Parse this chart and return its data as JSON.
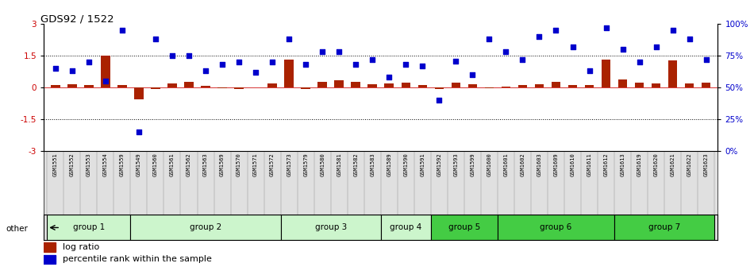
{
  "title": "GDS92 / 1522",
  "samples": [
    "GSM1551",
    "GSM1552",
    "GSM1553",
    "GSM1554",
    "GSM1559",
    "GSM1549",
    "GSM1560",
    "GSM1561",
    "GSM1562",
    "GSM1563",
    "GSM1569",
    "GSM1570",
    "GSM1571",
    "GSM1572",
    "GSM1573",
    "GSM1579",
    "GSM1580",
    "GSM1581",
    "GSM1582",
    "GSM1583",
    "GSM1589",
    "GSM1590",
    "GSM1591",
    "GSM1592",
    "GSM1593",
    "GSM1599",
    "GSM1600",
    "GSM1601",
    "GSM1602",
    "GSM1603",
    "GSM1609",
    "GSM1610",
    "GSM1611",
    "GSM1612",
    "GSM1613",
    "GSM1619",
    "GSM1620",
    "GSM1621",
    "GSM1622",
    "GSM1623"
  ],
  "log_ratio": [
    0.13,
    0.15,
    0.12,
    1.5,
    0.12,
    -0.55,
    -0.07,
    0.18,
    0.28,
    0.08,
    -0.05,
    -0.08,
    0.0,
    0.18,
    1.3,
    -0.07,
    0.28,
    0.35,
    0.28,
    0.15,
    0.18,
    0.22,
    0.12,
    -0.07,
    0.22,
    0.16,
    -0.05,
    0.05,
    0.1,
    0.15,
    0.27,
    0.13,
    0.1,
    1.3,
    0.38,
    0.22,
    0.18,
    1.28,
    0.18,
    0.22
  ],
  "percentile": [
    65,
    63,
    70,
    55,
    95,
    15,
    88,
    75,
    75,
    63,
    68,
    70,
    62,
    70,
    88,
    68,
    78,
    78,
    68,
    72,
    58,
    68,
    67,
    40,
    71,
    60,
    88,
    78,
    72,
    90,
    95,
    82,
    63,
    97,
    80,
    70,
    82,
    95,
    88,
    72
  ],
  "groups": [
    {
      "name": "group 1",
      "start": 0,
      "end": 5
    },
    {
      "name": "group 2",
      "start": 5,
      "end": 14
    },
    {
      "name": "group 3",
      "start": 14,
      "end": 20
    },
    {
      "name": "group 4",
      "start": 20,
      "end": 23
    },
    {
      "name": "group 5",
      "start": 23,
      "end": 27
    },
    {
      "name": "group 6",
      "start": 27,
      "end": 34
    },
    {
      "name": "group 7",
      "start": 34,
      "end": 40
    }
  ],
  "group_colors": [
    "#ccf5cc",
    "#ccf5cc",
    "#ccf5cc",
    "#ccf5cc",
    "#44cc44",
    "#44cc44",
    "#44cc44"
  ],
  "bar_color": "#aa2200",
  "dot_color": "#0000cc",
  "ylim_left": [
    -3,
    3
  ],
  "ylim_right": [
    0,
    100
  ],
  "yticks_left": [
    -3,
    -1.5,
    0,
    1.5,
    3
  ],
  "yticks_right": [
    0,
    25,
    50,
    75,
    100
  ],
  "hline_values": [
    1.5,
    -1.5
  ],
  "background_color": "#ffffff"
}
